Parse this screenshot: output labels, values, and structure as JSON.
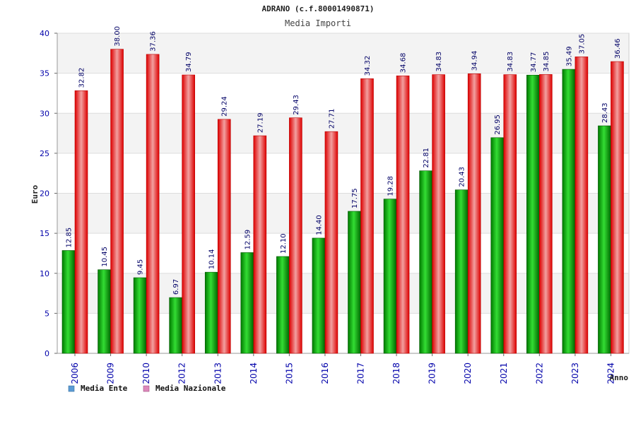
{
  "chart_data": {
    "type": "bar",
    "title": "ADRANO (c.f.80001490871)",
    "subtitle": "Media Importi",
    "ylabel": "Euro",
    "xlabel": "Anno",
    "ylim": [
      0,
      40
    ],
    "yticks": [
      0,
      5,
      10,
      15,
      20,
      25,
      30,
      35,
      40
    ],
    "grid": true,
    "legend_position": "bottom-left",
    "categories": [
      "2006",
      "2009",
      "2010",
      "2012",
      "2013",
      "2014",
      "2015",
      "2016",
      "2017",
      "2018",
      "2019",
      "2020",
      "2021",
      "2022",
      "2023",
      "2024"
    ],
    "series": [
      {
        "name": "Media Ente",
        "color": "#00aa00",
        "legend_color": "#5b9bd5",
        "values": [
          12.85,
          10.45,
          9.45,
          6.97,
          10.14,
          12.59,
          12.1,
          14.4,
          17.75,
          19.28,
          22.81,
          20.43,
          26.95,
          34.77,
          35.49,
          28.43
        ],
        "labels": [
          "12.85",
          "10.45",
          "9.45",
          "6.97",
          "10.14",
          "12.59",
          "12.10",
          "14.40",
          "17.75",
          "19.28",
          "22.81",
          "20.43",
          "26.95",
          "34.77",
          "35.49",
          "28.43"
        ]
      },
      {
        "name": "Media Nazionale",
        "color": "#ee1111",
        "legend_color": "#dd88bb",
        "values": [
          32.82,
          38.0,
          37.36,
          34.79,
          29.24,
          27.19,
          29.43,
          27.71,
          34.32,
          34.68,
          34.83,
          34.94,
          34.83,
          34.85,
          37.05,
          36.46
        ],
        "labels": [
          "32.82",
          "38.00",
          "37.36",
          "34.79",
          "29.24",
          "27.19",
          "29.43",
          "27.71",
          "34.32",
          "34.68",
          "34.83",
          "34.94",
          "34.83",
          "34.85",
          "37.05",
          "36.46"
        ]
      }
    ]
  }
}
